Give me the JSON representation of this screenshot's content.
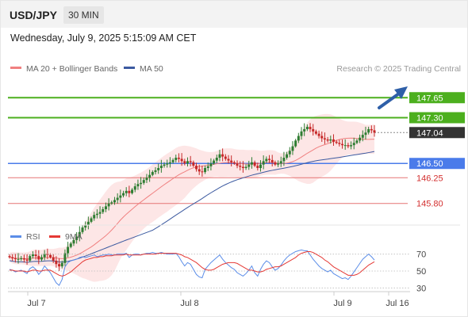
{
  "header": {
    "symbol": "USD/JPY",
    "timeframe": "30 MIN",
    "datetime": "Wednesday, July 9, 2025 5:15:09 AM CET"
  },
  "legend": {
    "ma20": "MA 20 + Bollinger Bands",
    "ma50": "MA 50",
    "credit": "Research © 2025 Trading Central",
    "rsi": "RSI",
    "ma9": "9MA"
  },
  "colors": {
    "up": "#2e7d32",
    "down": "#c62828",
    "ma20": "#f08080",
    "band": "#fde2e2",
    "ma50": "#3c5aa0",
    "resistance": "#4caf1e",
    "support": "#4a7bea",
    "target_low": "#e57373",
    "current": "#333333",
    "rsi": "#5b8de8",
    "rsi_ma": "#e53935",
    "arrow": "#2e5fa8"
  },
  "chart_data": [
    {
      "type": "candlestick",
      "title": "USD/JPY 30 MIN",
      "x_labels": [
        "Jul 7",
        "Jul 8",
        "Jul 9",
        "Jul 16"
      ],
      "ylim": [
        145.45,
        148.0
      ],
      "levels": [
        {
          "value": "147.65",
          "kind": "resistance"
        },
        {
          "value": "147.30",
          "kind": "resistance"
        },
        {
          "value": "147.04",
          "kind": "current"
        },
        {
          "value": "146.50",
          "kind": "support"
        },
        {
          "value": "146.25",
          "kind": "target_low"
        },
        {
          "value": "145.80",
          "kind": "target_low"
        }
      ],
      "close": [
        144.86,
        144.84,
        144.83,
        144.83,
        144.84,
        144.82,
        144.8,
        144.88,
        144.91,
        144.88,
        144.82,
        144.86,
        144.92,
        144.9,
        144.86,
        144.8,
        144.74,
        144.7,
        144.76,
        144.93,
        145.04,
        145.1,
        145.16,
        145.22,
        145.3,
        145.38,
        145.42,
        145.48,
        145.54,
        145.6,
        145.62,
        145.65,
        145.7,
        145.75,
        145.8,
        145.82,
        145.86,
        145.9,
        145.94,
        145.98,
        146.02,
        145.98,
        146.04,
        146.1,
        146.14,
        146.16,
        146.21,
        146.25,
        146.3,
        146.35,
        146.38,
        146.42,
        146.46,
        146.48,
        146.5,
        146.52,
        146.56,
        146.6,
        146.58,
        146.54,
        146.5,
        146.54,
        146.52,
        146.46,
        146.4,
        146.36,
        146.35,
        146.42,
        146.45,
        146.5,
        146.55,
        146.6,
        146.66,
        146.62,
        146.58,
        146.55,
        146.52,
        146.5,
        146.46,
        146.44,
        146.42,
        146.44,
        146.48,
        146.52,
        146.46,
        146.42,
        146.48,
        146.54,
        146.58,
        146.56,
        146.52,
        146.48,
        146.5,
        146.54,
        146.6,
        146.66,
        146.72,
        146.8,
        146.9,
        146.98,
        147.06,
        147.1,
        147.14,
        147.1,
        147.06,
        147.02,
        146.98,
        146.94,
        146.92,
        146.9,
        146.92,
        146.88,
        146.86,
        146.84,
        146.82,
        146.82,
        146.8,
        146.82,
        146.86,
        146.9,
        146.95,
        147.0,
        147.04,
        147.1,
        147.08,
        147.04
      ],
      "series": [
        {
          "name": "MA 20 + Bollinger Bands"
        },
        {
          "name": "MA 50"
        }
      ]
    },
    {
      "type": "line",
      "x_labels": [
        "Jul 7",
        "Jul 8",
        "Jul 9",
        "Jul 16"
      ],
      "ylim": [
        20,
        80
      ],
      "y_ticks": [
        "70",
        "50",
        "30"
      ],
      "series": [
        {
          "name": "RSI",
          "values": [
            52,
            51,
            49,
            50,
            51,
            49,
            47,
            53,
            55,
            52,
            46,
            50,
            56,
            52,
            48,
            42,
            36,
            33,
            40,
            55,
            60,
            62,
            63,
            64,
            66,
            67,
            66,
            67,
            68,
            69,
            67,
            68,
            69,
            69,
            70,
            69,
            69,
            70,
            70,
            70,
            71,
            66,
            69,
            70,
            70,
            69,
            70,
            71,
            71,
            72,
            71,
            71,
            72,
            71,
            70,
            70,
            70,
            71,
            67,
            61,
            56,
            60,
            58,
            52,
            46,
            43,
            42,
            52,
            56,
            60,
            63,
            66,
            69,
            64,
            60,
            57,
            54,
            52,
            48,
            46,
            44,
            47,
            51,
            56,
            48,
            44,
            52,
            58,
            62,
            60,
            55,
            51,
            53,
            57,
            62,
            66,
            69,
            71,
            73,
            74,
            75,
            74,
            74,
            69,
            64,
            60,
            56,
            53,
            51,
            49,
            51,
            47,
            45,
            43,
            41,
            42,
            40,
            44,
            49,
            54,
            59,
            64,
            67,
            70,
            67,
            63
          ]
        },
        {
          "name": "9MA",
          "values": [
            51,
            51,
            50,
            50,
            50,
            50,
            49,
            50,
            51,
            51,
            50,
            50,
            51,
            51,
            51,
            49,
            47,
            45,
            44,
            45,
            47,
            49,
            52,
            55,
            58,
            61,
            63,
            64,
            65,
            66,
            66,
            67,
            67,
            68,
            68,
            68,
            69,
            69,
            69,
            69,
            70,
            69,
            69,
            69,
            69,
            69,
            70,
            70,
            70,
            70,
            70,
            71,
            71,
            71,
            71,
            71,
            71,
            71,
            70,
            69,
            67,
            66,
            64,
            62,
            60,
            57,
            54,
            52,
            51,
            51,
            52,
            54,
            56,
            58,
            59,
            60,
            60,
            60,
            59,
            57,
            55,
            53,
            51,
            51,
            50,
            49,
            49,
            50,
            52,
            53,
            54,
            55,
            55,
            56,
            58,
            60,
            62,
            64,
            66,
            69,
            71,
            72,
            73,
            73,
            72,
            70,
            68,
            66,
            63,
            61,
            58,
            55,
            53,
            51,
            49,
            47,
            45,
            45,
            45,
            46,
            48,
            51,
            54,
            57,
            59,
            61
          ]
        }
      ]
    }
  ]
}
